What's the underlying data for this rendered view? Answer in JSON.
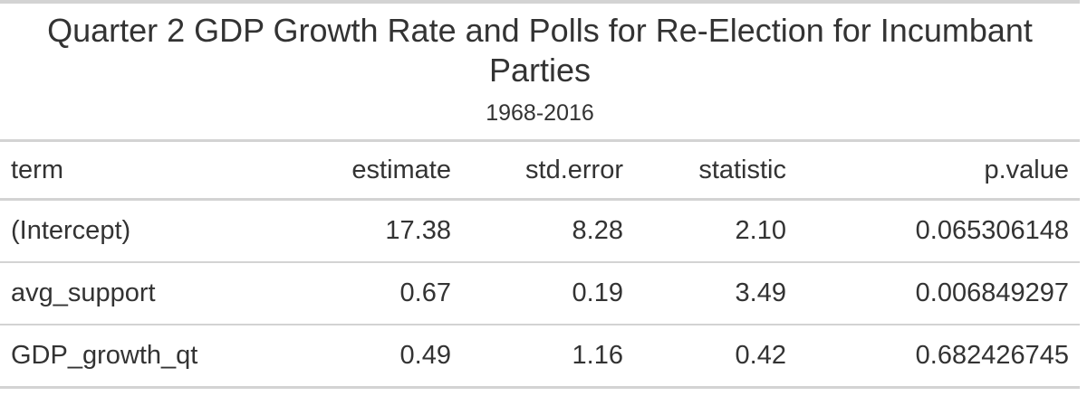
{
  "chart_data": {
    "type": "table",
    "title": "Quarter 2 GDP Growth Rate and Polls for Re-Election for Incumbant Parties",
    "subtitle": "1968-2016",
    "columns": [
      "term",
      "estimate",
      "std.error",
      "statistic",
      "p.value"
    ],
    "rows": [
      {
        "term": "(Intercept)",
        "estimate": "17.38",
        "std_error": "8.28",
        "statistic": "2.10",
        "p_value": "0.065306148"
      },
      {
        "term": "avg_support",
        "estimate": "0.67",
        "std_error": "0.19",
        "statistic": "3.49",
        "p_value": "0.006849297"
      },
      {
        "term": "GDP_growth_qt",
        "estimate": "0.49",
        "std_error": "1.16",
        "statistic": "0.42",
        "p_value": "0.682426745"
      }
    ],
    "colors": {
      "text": "#333333",
      "rule": "#d3d3d3",
      "background": "#ffffff"
    }
  }
}
